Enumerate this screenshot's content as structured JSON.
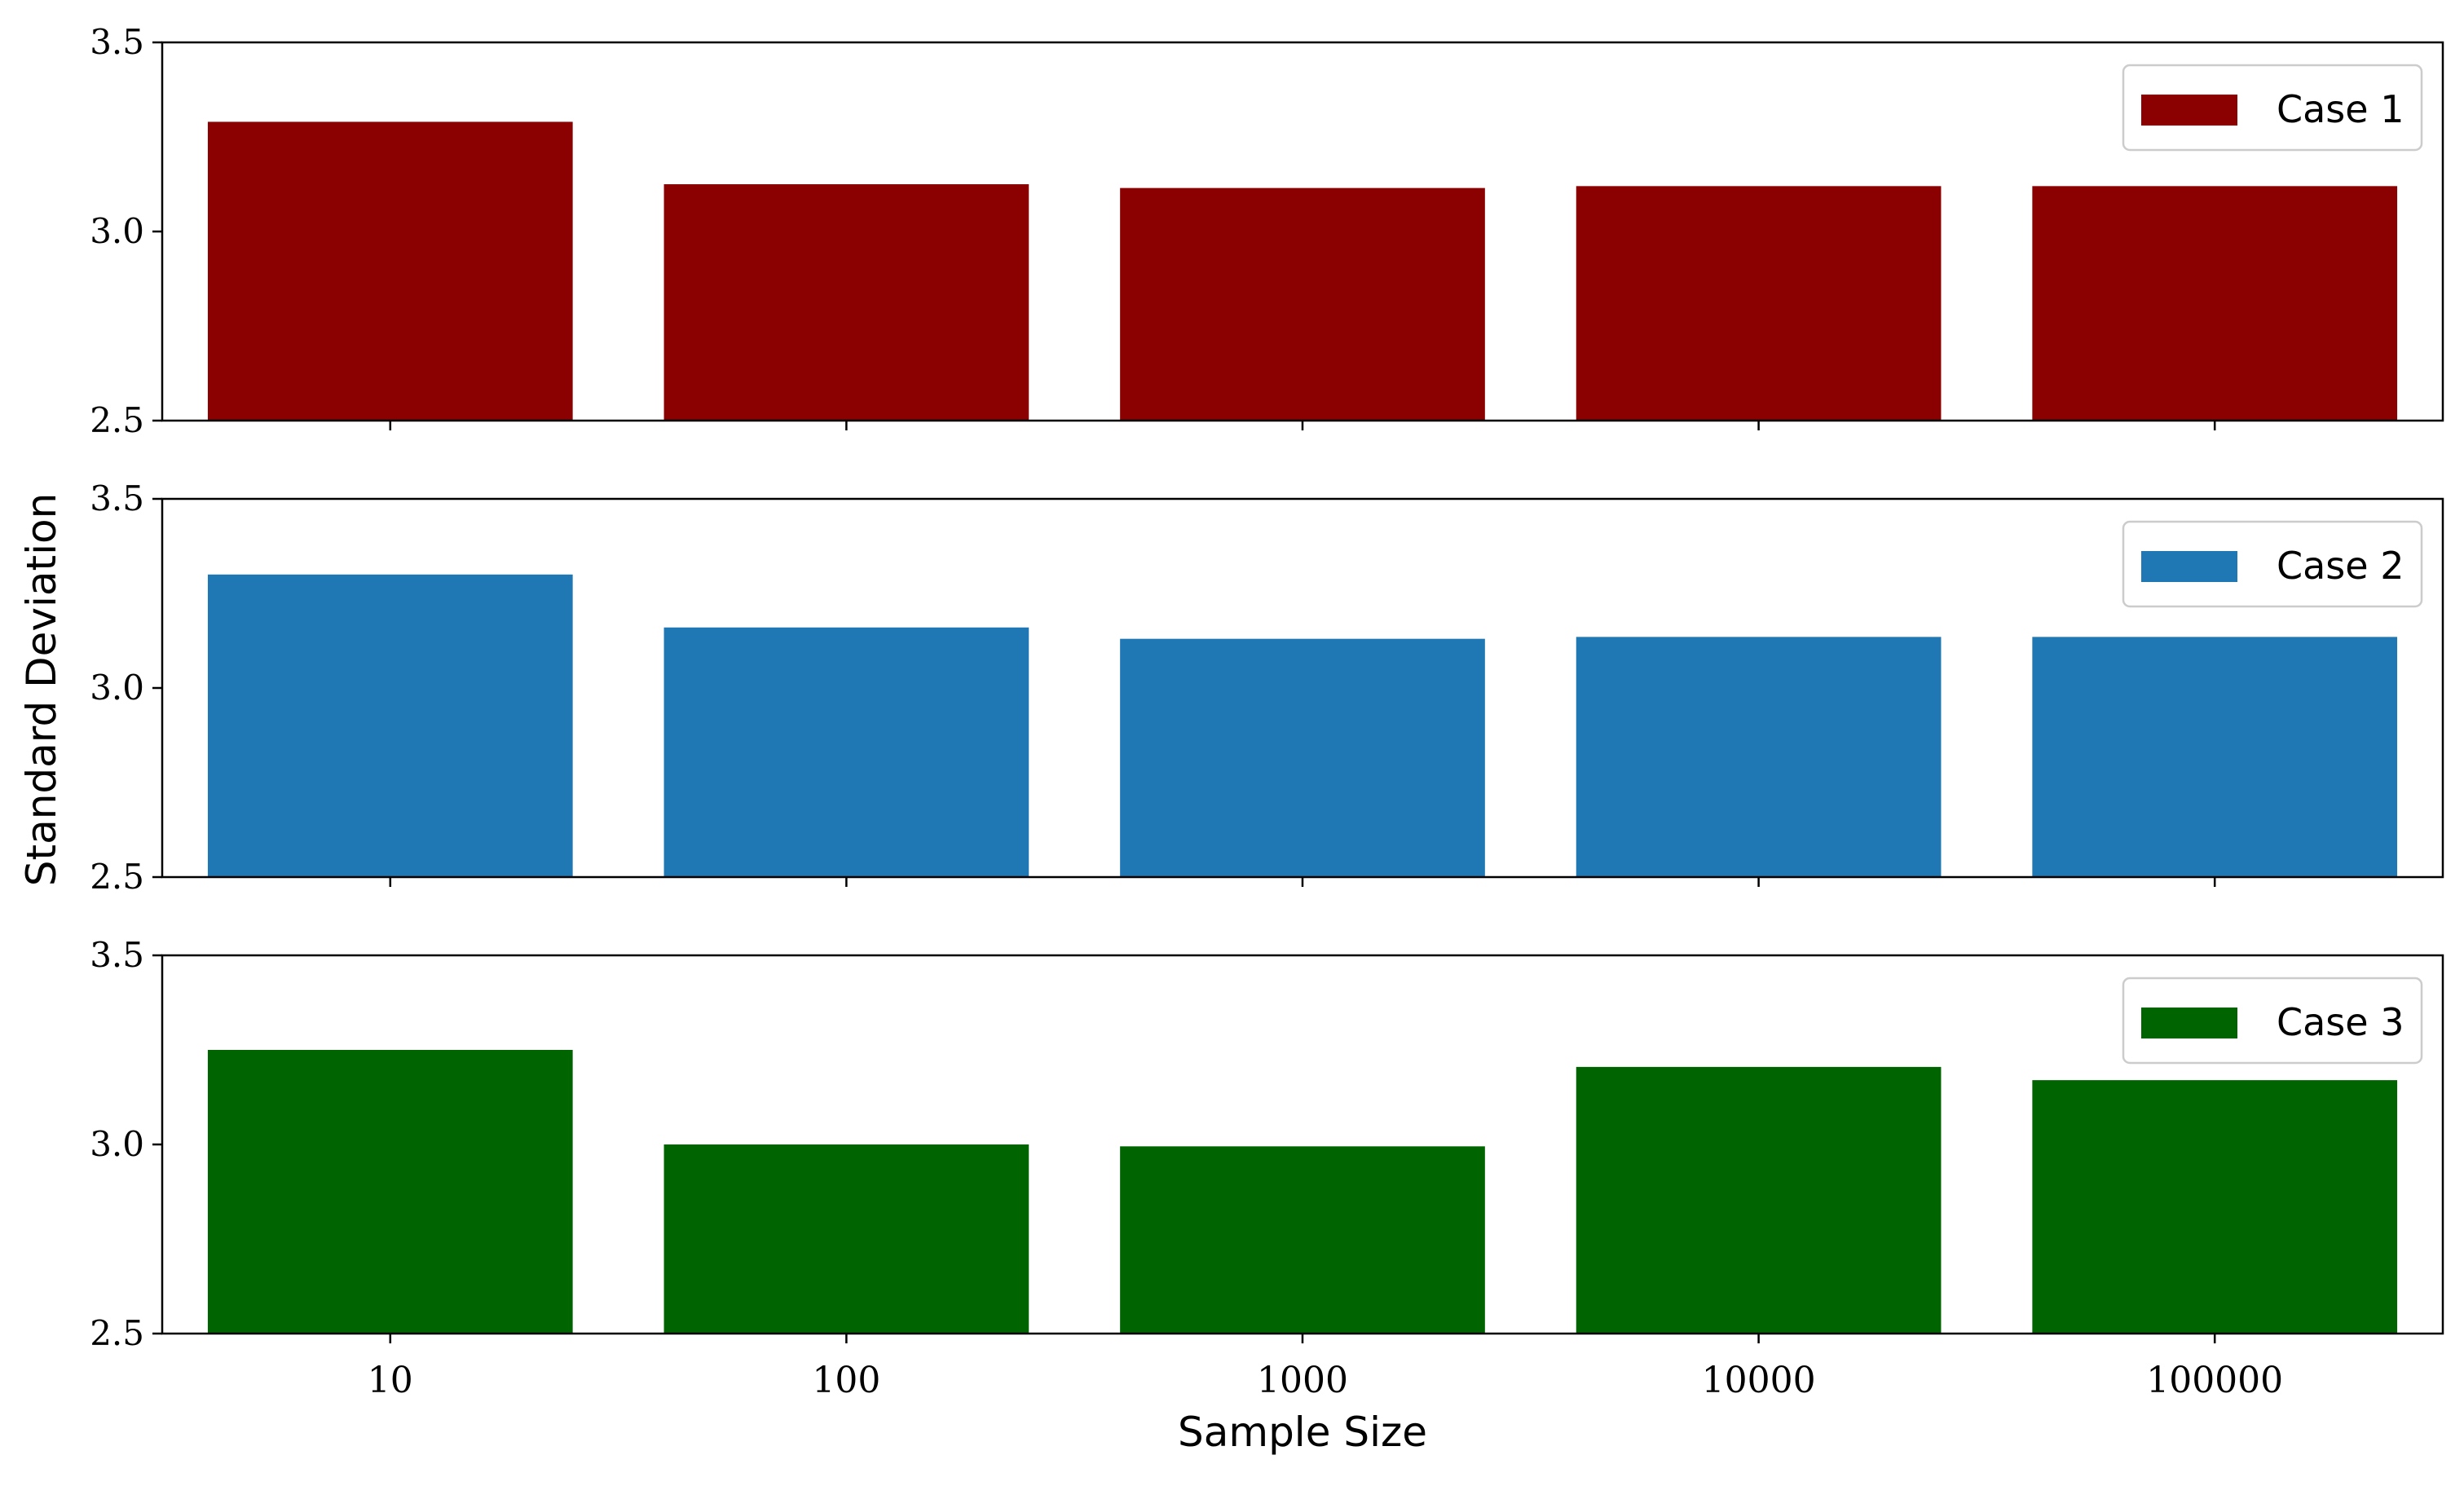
{
  "chart_data": {
    "type": "bar",
    "xlabel": "Sample Size",
    "ylabel": "Standard Deviation",
    "categories": [
      "10",
      "100",
      "1000",
      "10000",
      "100000"
    ],
    "ylim": [
      2.5,
      3.5
    ],
    "yticks": [
      "2.5",
      "3.0",
      "3.5"
    ],
    "legend_position": "top-right",
    "grid": false,
    "shared_x": true,
    "panels": [
      {
        "name": "Case 1",
        "color": "#8b0000",
        "values": [
          3.29,
          3.125,
          3.115,
          3.12,
          3.12
        ]
      },
      {
        "name": "Case 2",
        "color": "#1f77b4",
        "values": [
          3.3,
          3.16,
          3.13,
          3.135,
          3.135
        ]
      },
      {
        "name": "Case 3",
        "color": "#006400",
        "values": [
          3.25,
          3.0,
          2.995,
          3.205,
          3.17
        ]
      }
    ]
  }
}
